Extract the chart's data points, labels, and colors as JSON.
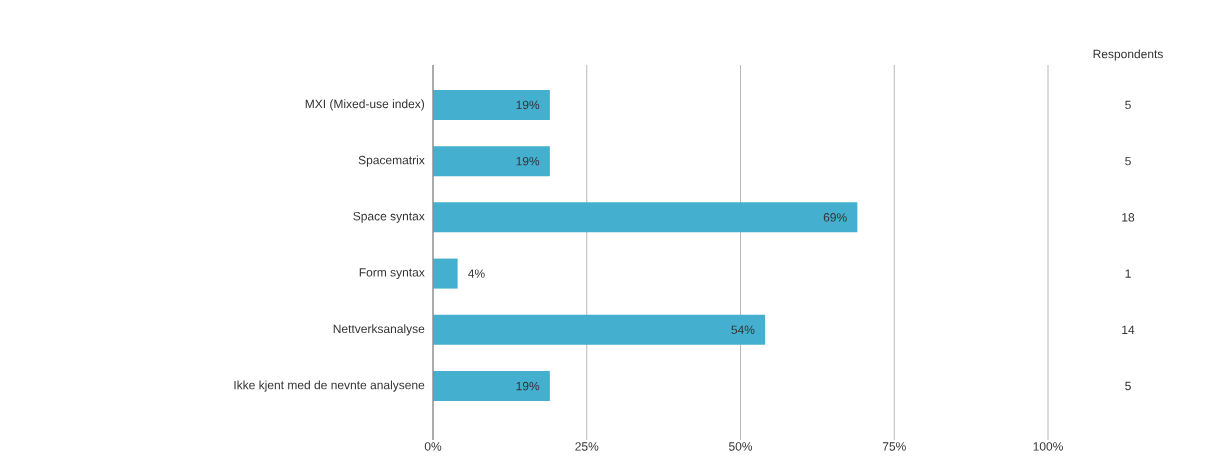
{
  "chart_data": {
    "type": "bar",
    "orientation": "horizontal",
    "categories": [
      "MXI (Mixed-use index)",
      "Spacematrix",
      "Space syntax",
      "Form syntax",
      "Nettverksanalyse",
      "Ikke kjent med de nevnte analysene"
    ],
    "values": [
      19,
      19,
      69,
      4,
      54,
      19
    ],
    "value_labels": [
      "19%",
      "19%",
      "69%",
      "4%",
      "54%",
      "19%"
    ],
    "color": "#44afcf",
    "xlim": [
      0,
      100
    ],
    "xticks": [
      {
        "value": 0,
        "label": "0%"
      },
      {
        "value": 25,
        "label": "25%"
      },
      {
        "value": 50,
        "label": "50%"
      },
      {
        "value": 75,
        "label": "75%"
      },
      {
        "value": 100,
        "label": "100%"
      }
    ],
    "grid": "x",
    "annotations": [
      "Respondents",
      "5",
      "5",
      "18",
      "1",
      "14",
      "5"
    ]
  }
}
